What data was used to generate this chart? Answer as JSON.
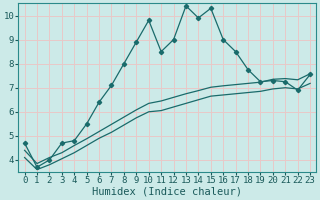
{
  "xlabel": "Humidex (Indice chaleur)",
  "bg_color": "#cceae8",
  "grid_color": "#e8c8c8",
  "line_color": "#1a6b6b",
  "xlim": [
    -0.5,
    23.5
  ],
  "ylim": [
    3.5,
    10.5
  ],
  "xticks": [
    0,
    1,
    2,
    3,
    4,
    5,
    6,
    7,
    8,
    9,
    10,
    11,
    12,
    13,
    14,
    15,
    16,
    17,
    18,
    19,
    20,
    21,
    22,
    23
  ],
  "yticks": [
    4,
    5,
    6,
    7,
    8,
    9,
    10
  ],
  "series1_x": [
    0,
    1,
    2,
    3,
    4,
    5,
    6,
    7,
    8,
    9,
    10,
    11,
    12,
    13,
    14,
    15,
    16,
    17,
    18,
    19,
    20,
    21,
    22,
    23
  ],
  "series1_y": [
    4.7,
    3.7,
    4.0,
    4.7,
    4.8,
    5.5,
    6.4,
    7.1,
    8.0,
    8.9,
    9.8,
    8.5,
    9.0,
    10.4,
    9.9,
    10.3,
    9.0,
    8.5,
    7.75,
    7.25,
    7.3,
    7.25,
    6.9,
    7.55
  ],
  "series2_x": [
    0,
    1,
    2,
    3,
    4,
    5,
    6,
    7,
    8,
    9,
    10,
    11,
    12,
    13,
    14,
    15,
    16,
    17,
    18,
    19,
    20,
    21,
    22,
    23
  ],
  "series2_y": [
    4.4,
    3.85,
    4.1,
    4.3,
    4.6,
    4.88,
    5.18,
    5.48,
    5.78,
    6.08,
    6.35,
    6.45,
    6.6,
    6.75,
    6.88,
    7.02,
    7.08,
    7.13,
    7.18,
    7.23,
    7.35,
    7.38,
    7.33,
    7.58
  ],
  "series3_x": [
    0,
    1,
    2,
    3,
    4,
    5,
    6,
    7,
    8,
    9,
    10,
    11,
    12,
    13,
    14,
    15,
    16,
    17,
    18,
    19,
    20,
    21,
    22,
    23
  ],
  "series3_y": [
    4.1,
    3.6,
    3.8,
    4.05,
    4.3,
    4.6,
    4.9,
    5.15,
    5.45,
    5.75,
    6.0,
    6.05,
    6.2,
    6.35,
    6.5,
    6.65,
    6.7,
    6.75,
    6.8,
    6.85,
    6.95,
    7.0,
    6.95,
    7.18
  ],
  "tick_fontsize": 6.5,
  "axis_fontsize": 7.5
}
